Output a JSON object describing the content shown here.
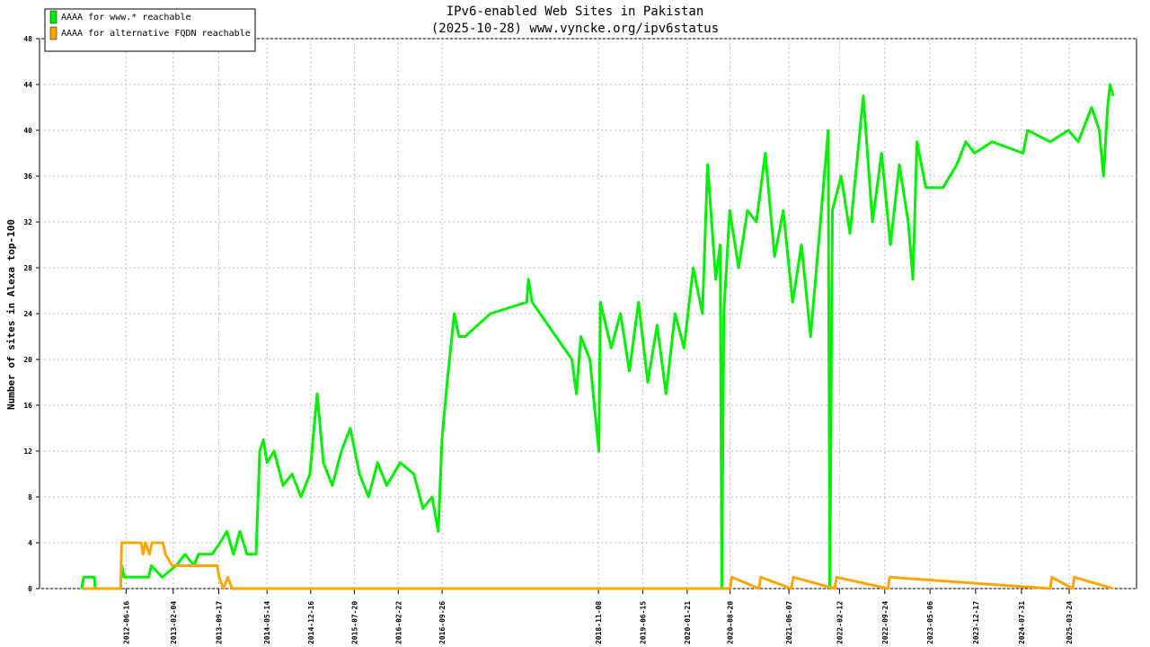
{
  "chart_data": {
    "type": "line",
    "title": "IPv6-enabled Web Sites in Pakistan",
    "subtitle": "(2025-10-28) www.vyncke.org/ipv6status",
    "y_label": "Number of sites in Alexa top-100",
    "xlim": [
      "2011-04-15",
      "2026-02-20"
    ],
    "ylim": [
      0,
      48
    ],
    "yticks": [
      0,
      4,
      8,
      12,
      16,
      20,
      24,
      28,
      32,
      36,
      40,
      44,
      48
    ],
    "xticks": [
      "2012-06-16",
      "2013-02-04",
      "2013-09-17",
      "2014-05-14",
      "2014-12-16",
      "2015-07-20",
      "2016-02-22",
      "2016-09-26",
      "2018-11-08",
      "2019-06-15",
      "2020-01-21",
      "2020-08-20",
      "2021-06-07",
      "2022-02-12",
      "2022-09-24",
      "2023-05-06",
      "2023-12-17",
      "2024-07-31",
      "2025-03-24"
    ],
    "grid": true,
    "legend_position": "upper left",
    "series": [
      {
        "name": "AAAA for www.* reachable",
        "color": "#00f000",
        "x": [
          "2011-11-10",
          "2011-11-19",
          "2012-01-11",
          "2012-01-16",
          "2012-05-20",
          "2012-05-25",
          "2012-06-07",
          "2012-10-06",
          "2012-10-19",
          "2012-12-12",
          "2013-02-18",
          "2013-04-04",
          "2013-05-18",
          "2013-06-09",
          "2013-08-15",
          "2013-09-23",
          "2013-10-28",
          "2013-11-29",
          "2013-12-31",
          "2014-02-04",
          "2014-03-21",
          "2014-04-08",
          "2014-04-26",
          "2014-05-14",
          "2014-06-18",
          "2014-08-01",
          "2014-09-15",
          "2014-10-29",
          "2014-12-12",
          "2015-01-17",
          "2015-02-17",
          "2015-04-02",
          "2015-05-17",
          "2015-06-30",
          "2015-08-14",
          "2015-09-28",
          "2015-11-12",
          "2015-12-27",
          "2016-03-03",
          "2016-05-09",
          "2016-06-23",
          "2016-08-07",
          "2016-09-07",
          "2016-09-25",
          "2016-10-21",
          "2016-11-25",
          "2016-12-18",
          "2017-01-18",
          "2017-05-23",
          "2017-11-18",
          "2017-11-27",
          "2017-12-15",
          "2018-06-30",
          "2018-07-22",
          "2018-08-13",
          "2018-09-27",
          "2018-11-10",
          "2018-11-18",
          "2019-01-10",
          "2019-02-25",
          "2019-04-10",
          "2019-05-25",
          "2019-07-10",
          "2019-08-25",
          "2019-10-08",
          "2019-11-22",
          "2020-01-05",
          "2020-02-20",
          "2020-04-05",
          "2020-05-01",
          "2020-06-10",
          "2020-07-02",
          "2020-07-10",
          "2020-07-20",
          "2020-08-18",
          "2020-10-01",
          "2020-11-14",
          "2020-12-28",
          "2021-02-10",
          "2021-03-28",
          "2021-05-10",
          "2021-06-25",
          "2021-08-08",
          "2021-09-22",
          "2021-11-05",
          "2021-12-18",
          "2021-12-26",
          "2022-01-08",
          "2022-02-20",
          "2022-04-05",
          "2022-06-10",
          "2022-07-25",
          "2022-09-08",
          "2022-10-22",
          "2022-12-05",
          "2023-01-18",
          "2023-02-10",
          "2023-03-02",
          "2023-04-15",
          "2023-07-10",
          "2023-09-15",
          "2023-10-30",
          "2023-12-12",
          "2024-03-08",
          "2024-08-08",
          "2024-08-30",
          "2024-12-20",
          "2025-03-20",
          "2025-05-08",
          "2025-07-13",
          "2025-08-20",
          "2025-09-10",
          "2025-09-30",
          "2025-10-12",
          "2025-10-28"
        ],
        "values": [
          0,
          1,
          1,
          0,
          0,
          2,
          1,
          1,
          2,
          1,
          2,
          3,
          2,
          3,
          3,
          4,
          5,
          3,
          5,
          3,
          3,
          12,
          13,
          11,
          12,
          9,
          10,
          8,
          10,
          17,
          11,
          9,
          12,
          14,
          10,
          8,
          11,
          9,
          11,
          10,
          7,
          8,
          5,
          13,
          18,
          24,
          22,
          22,
          24,
          25,
          27,
          25,
          20,
          17,
          22,
          20,
          12,
          25,
          21,
          24,
          19,
          25,
          18,
          23,
          17,
          24,
          21,
          28,
          24,
          37,
          27,
          30,
          0,
          24,
          33,
          28,
          33,
          32,
          38,
          29,
          33,
          25,
          30,
          22,
          31,
          40,
          0,
          33,
          36,
          31,
          43,
          32,
          38,
          30,
          37,
          32,
          27,
          39,
          35,
          35,
          37,
          39,
          38,
          39,
          38,
          40,
          39,
          40,
          39,
          42,
          40,
          36,
          42,
          44,
          43
        ]
      },
      {
        "name": "AAAA for alternative FQDN reachable",
        "color": "#ffa500",
        "x": [
          "2011-11-10",
          "2012-05-20",
          "2012-05-25",
          "2012-08-30",
          "2012-09-08",
          "2012-09-20",
          "2012-10-10",
          "2012-10-22",
          "2012-12-15",
          "2012-12-28",
          "2013-01-30",
          "2013-09-10",
          "2013-09-19",
          "2013-10-10",
          "2013-11-01",
          "2013-11-22",
          "2020-08-20",
          "2020-08-28",
          "2021-01-10",
          "2021-01-18",
          "2021-06-20",
          "2021-06-28",
          "2022-01-20",
          "2022-01-28",
          "2022-10-10",
          "2022-10-18",
          "2024-12-20",
          "2024-12-28",
          "2025-04-10",
          "2025-04-18",
          "2025-10-28"
        ],
        "values": [
          0,
          0,
          4,
          4,
          3,
          4,
          3,
          4,
          4,
          3,
          2,
          2,
          1,
          0,
          1,
          0,
          0,
          1,
          0,
          1,
          0,
          1,
          0,
          1,
          0,
          1,
          0,
          1,
          0,
          1,
          0
        ]
      }
    ]
  }
}
